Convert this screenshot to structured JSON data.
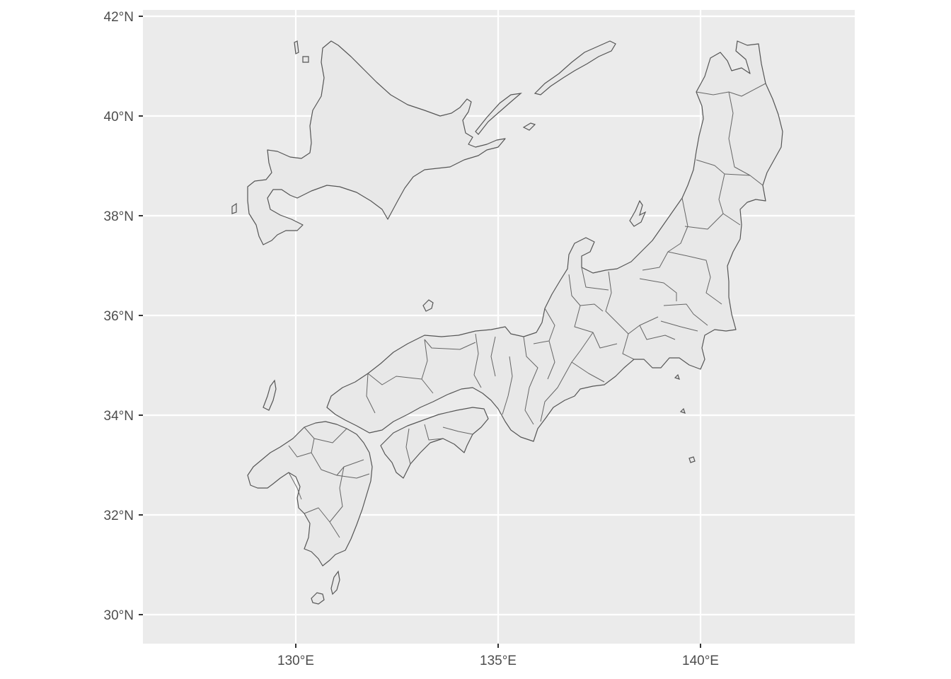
{
  "map": {
    "x_axis": {
      "ticks": [
        {
          "value": 130,
          "label": "130°E"
        },
        {
          "value": 135,
          "label": "135°E"
        },
        {
          "value": 140,
          "label": "140°E"
        }
      ]
    },
    "y_axis": {
      "ticks": [
        {
          "value": 30,
          "label": "30°N"
        },
        {
          "value": 32,
          "label": "32°N"
        },
        {
          "value": 34,
          "label": "34°N"
        },
        {
          "value": 36,
          "label": "36°N"
        },
        {
          "value": 38,
          "label": "38°N"
        },
        {
          "value": 40,
          "label": "40°N"
        },
        {
          "value": 42,
          "label": "42°N"
        }
      ]
    },
    "extent": {
      "lon": [
        126.2,
        143.9
      ],
      "lat": [
        29.4,
        42.1
      ]
    },
    "regions": [
      "Hokkaido",
      "Honshu",
      "Shikoku",
      "Kyushu"
    ],
    "colors": {
      "panel": "#ebebeb",
      "land": "#e8e8e8",
      "border": "#555555",
      "grid": "#ffffff",
      "tick_label": "#4d4d4d"
    }
  }
}
